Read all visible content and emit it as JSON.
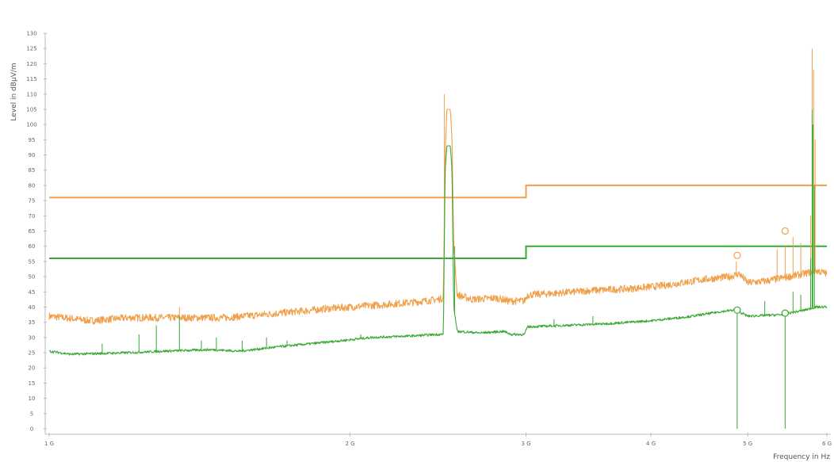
{
  "chart_data": {
    "type": "line",
    "title": "",
    "xlabel": "Frequency in Hz",
    "ylabel": "Level in dBµV/m",
    "x_scale": "log",
    "xlim": [
      1000000000,
      6000000000
    ],
    "ylim": [
      0,
      130
    ],
    "x_ticks": [
      {
        "value": 1000000000,
        "label": "1 G"
      },
      {
        "value": 2000000000,
        "label": "2 G"
      },
      {
        "value": 3000000000,
        "label": "3 G"
      },
      {
        "value": 4000000000,
        "label": "4 G"
      },
      {
        "value": 5000000000,
        "label": "5 G"
      },
      {
        "value": 6000000000,
        "label": "6 G"
      }
    ],
    "y_ticks": [
      0,
      5,
      10,
      15,
      20,
      25,
      30,
      35,
      40,
      45,
      50,
      55,
      60,
      65,
      70,
      75,
      80,
      85,
      90,
      95,
      100,
      105,
      110,
      115,
      120,
      125,
      130
    ],
    "grid": false,
    "legend": "none",
    "colors": {
      "peak": "#f0a04b",
      "average": "#3aaa35"
    },
    "limit_lines": [
      {
        "color": "peak",
        "points": [
          [
            1000000000,
            76
          ],
          [
            3000000000,
            76
          ],
          [
            3000000000,
            80
          ],
          [
            6000000000,
            80
          ]
        ]
      },
      {
        "color": "average",
        "points": [
          [
            1000000000,
            56
          ],
          [
            3000000000,
            56
          ],
          [
            3000000000,
            60
          ],
          [
            6000000000,
            60
          ]
        ]
      }
    ],
    "series": [
      {
        "color": "peak",
        "noise": 1.2,
        "points": [
          [
            1000000000,
            37
          ],
          [
            1100000000,
            35.5
          ],
          [
            1200000000,
            36.5
          ],
          [
            1300000000,
            36.5
          ],
          [
            1500000000,
            36.5
          ],
          [
            1700000000,
            38
          ],
          [
            1900000000,
            39.5
          ],
          [
            2100000000,
            40.5
          ],
          [
            2300000000,
            41.5
          ],
          [
            2450000000,
            42.5
          ],
          [
            2480000000,
            43
          ],
          [
            2490000000,
            90
          ],
          [
            2500000000,
            105
          ],
          [
            2520000000,
            105
          ],
          [
            2530000000,
            95
          ],
          [
            2540000000,
            60
          ],
          [
            2560000000,
            44
          ],
          [
            2650000000,
            42.5
          ],
          [
            2800000000,
            43
          ],
          [
            2880000000,
            42
          ],
          [
            2920000000,
            42
          ],
          [
            2990000000,
            42
          ],
          [
            3010000000,
            44
          ],
          [
            3200000000,
            44.5
          ],
          [
            3500000000,
            45.5
          ],
          [
            3800000000,
            46
          ],
          [
            4100000000,
            47
          ],
          [
            4500000000,
            49
          ],
          [
            4800000000,
            50
          ],
          [
            4900000000,
            51
          ],
          [
            5000000000,
            48
          ],
          [
            5200000000,
            48.5
          ],
          [
            5500000000,
            50
          ],
          [
            5700000000,
            51
          ],
          [
            5850000000,
            52
          ],
          [
            6000000000,
            51
          ]
        ],
        "spikes": [
          [
            1350000000,
            40
          ],
          [
            2485000000,
            110
          ],
          [
            4870000000,
            55
          ],
          [
            5350000000,
            59
          ],
          [
            5450000000,
            60
          ],
          [
            5550000000,
            63
          ],
          [
            5650000000,
            61
          ],
          [
            5780000000,
            70
          ],
          [
            5800000000,
            125
          ],
          [
            5820000000,
            118
          ],
          [
            5840000000,
            95
          ]
        ]
      },
      {
        "color": "average",
        "noise": 0.4,
        "points": [
          [
            1000000000,
            25.5
          ],
          [
            1050000000,
            24.5
          ],
          [
            1200000000,
            25
          ],
          [
            1300000000,
            25.5
          ],
          [
            1450000000,
            26
          ],
          [
            1550000000,
            25.5
          ],
          [
            1700000000,
            27
          ],
          [
            1900000000,
            28.5
          ],
          [
            2100000000,
            30
          ],
          [
            2300000000,
            30.5
          ],
          [
            2450000000,
            31
          ],
          [
            2480000000,
            31
          ],
          [
            2490000000,
            85
          ],
          [
            2500000000,
            93
          ],
          [
            2520000000,
            93
          ],
          [
            2530000000,
            85
          ],
          [
            2540000000,
            40
          ],
          [
            2560000000,
            32
          ],
          [
            2700000000,
            31.5
          ],
          [
            2850000000,
            32
          ],
          [
            2900000000,
            31
          ],
          [
            2990000000,
            31
          ],
          [
            3010000000,
            33.5
          ],
          [
            3300000000,
            34
          ],
          [
            3600000000,
            34.5
          ],
          [
            4000000000,
            35.5
          ],
          [
            4400000000,
            37
          ],
          [
            4700000000,
            38.5
          ],
          [
            4850000000,
            39
          ],
          [
            4900000000,
            38.5
          ],
          [
            5000000000,
            37
          ],
          [
            5400000000,
            37.5
          ],
          [
            5700000000,
            39
          ],
          [
            5850000000,
            40
          ],
          [
            6000000000,
            40
          ]
        ],
        "spikes": [
          [
            1130000000,
            28
          ],
          [
            1230000000,
            31
          ],
          [
            1280000000,
            34
          ],
          [
            1350000000,
            37
          ],
          [
            1420000000,
            29
          ],
          [
            1470000000,
            30
          ],
          [
            1560000000,
            29
          ],
          [
            1650000000,
            30
          ],
          [
            1730000000,
            29
          ],
          [
            2050000000,
            31
          ],
          [
            2485000000,
            58
          ],
          [
            2545000000,
            60
          ],
          [
            3200000000,
            36
          ],
          [
            3500000000,
            37
          ],
          [
            4880000000,
            0
          ],
          [
            5200000000,
            42
          ],
          [
            5450000000,
            0
          ],
          [
            5550000000,
            45
          ],
          [
            5650000000,
            44
          ],
          [
            5780000000,
            56
          ],
          [
            5800000000,
            105
          ],
          [
            5810000000,
            100
          ],
          [
            5830000000,
            80
          ]
        ]
      }
    ],
    "markers": [
      {
        "color": "peak",
        "x": 4880000000,
        "y": 57
      },
      {
        "color": "peak",
        "x": 5450000000,
        "y": 65
      },
      {
        "color": "average",
        "x": 4880000000,
        "y": 39
      },
      {
        "color": "average",
        "x": 5450000000,
        "y": 38
      }
    ]
  }
}
